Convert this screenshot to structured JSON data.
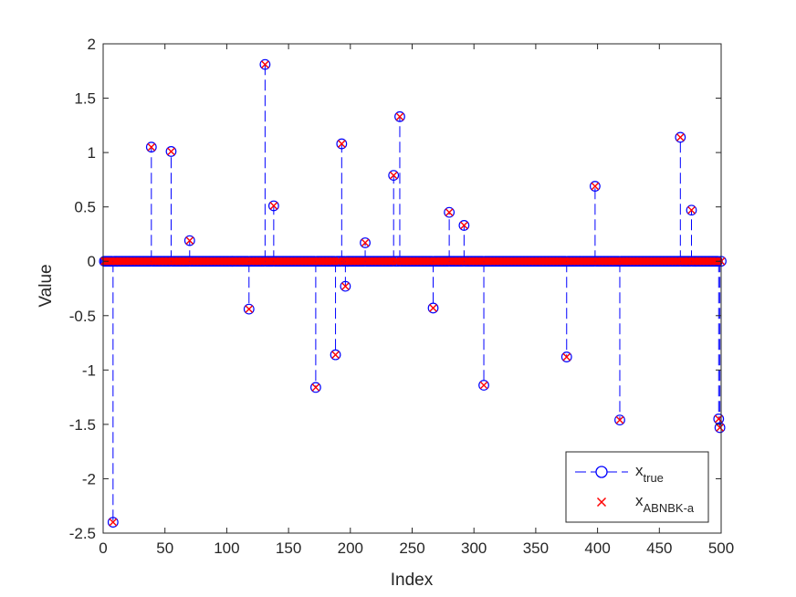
{
  "chart_data": {
    "type": "scatter",
    "xlabel": "Index",
    "ylabel": "Value",
    "xlim": [
      0,
      500
    ],
    "ylim": [
      -2.5,
      2
    ],
    "xticks": [
      0,
      50,
      100,
      150,
      200,
      250,
      300,
      350,
      400,
      450,
      500
    ],
    "yticks": [
      -2.5,
      -2,
      -1.5,
      -1,
      -0.5,
      0,
      0.5,
      1,
      1.5,
      2
    ],
    "xtick_labels": [
      "0",
      "50",
      "100",
      "150",
      "200",
      "250",
      "300",
      "350",
      "400",
      "450",
      "500"
    ],
    "ytick_labels": [
      "-2.5",
      "-2",
      "-1.5",
      "-1",
      "-0.5",
      "0",
      "0.5",
      "1",
      "1.5",
      "2"
    ],
    "n_points": 500,
    "grid": false,
    "legend_position": "bottom-right",
    "legend": [
      {
        "base": "x",
        "sub": "true",
        "marker": "circle",
        "line": "dashed",
        "color": "#0000ff"
      },
      {
        "base": "x",
        "sub": "ABNBK-a",
        "marker": "cross",
        "line": "none",
        "color": "#ff0000"
      }
    ],
    "nonzero_points": [
      {
        "x": 8,
        "y": -2.4
      },
      {
        "x": 39,
        "y": 1.05
      },
      {
        "x": 55,
        "y": 1.01
      },
      {
        "x": 70,
        "y": 0.19
      },
      {
        "x": 118,
        "y": -0.44
      },
      {
        "x": 131,
        "y": 1.81
      },
      {
        "x": 138,
        "y": 0.51
      },
      {
        "x": 172,
        "y": -1.16
      },
      {
        "x": 188,
        "y": -0.86
      },
      {
        "x": 193,
        "y": 1.08
      },
      {
        "x": 196,
        "y": -0.23
      },
      {
        "x": 212,
        "y": 0.17
      },
      {
        "x": 235,
        "y": 0.79
      },
      {
        "x": 240,
        "y": 1.33
      },
      {
        "x": 267,
        "y": -0.43
      },
      {
        "x": 280,
        "y": 0.45
      },
      {
        "x": 292,
        "y": 0.33
      },
      {
        "x": 308,
        "y": -1.14
      },
      {
        "x": 375,
        "y": -0.88
      },
      {
        "x": 398,
        "y": 0.69
      },
      {
        "x": 418,
        "y": -1.46
      },
      {
        "x": 467,
        "y": 1.14
      },
      {
        "x": 476,
        "y": 0.47
      },
      {
        "x": 498,
        "y": -1.45
      },
      {
        "x": 499,
        "y": -1.53
      }
    ],
    "series": [
      {
        "name": "x_true",
        "marker": "circle",
        "color": "#0000ff"
      },
      {
        "name": "x_ABNBK-a",
        "marker": "cross",
        "color": "#ff0000"
      }
    ]
  }
}
